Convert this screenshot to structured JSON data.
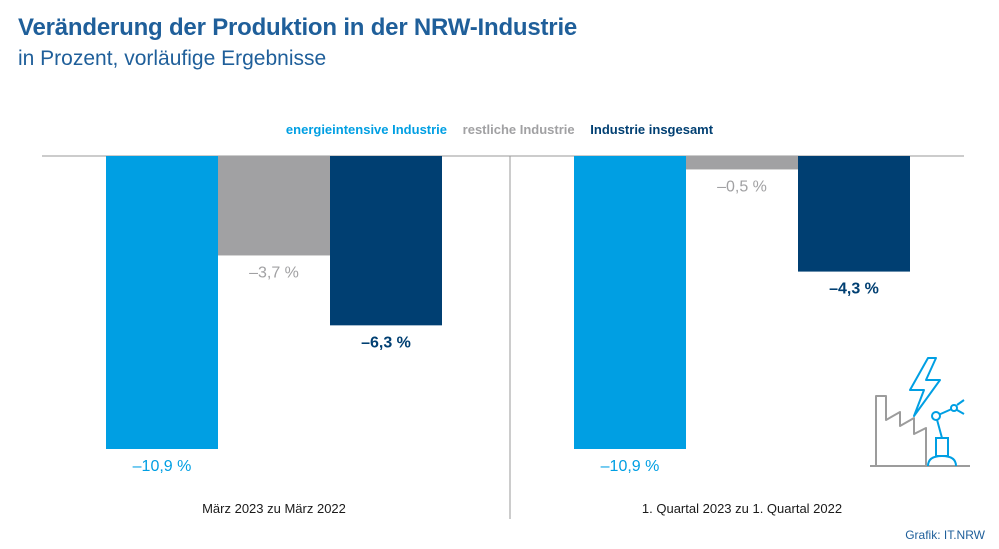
{
  "title": "Veränderung der Produktion in der NRW-Industrie",
  "subtitle": "in Prozent, vorläufige Ergebnisse",
  "source": "Grafik: IT.NRW",
  "colors": {
    "energieintensiv": "#009fe3",
    "restlich": "#a1a1a3",
    "gesamt": "#003f72",
    "title": "#1f5f9a"
  },
  "icon": "factory-robot-lightning-icon",
  "chart_data": {
    "type": "bar",
    "ylim": [
      -11.5,
      0
    ],
    "grid": false,
    "legend_position": "top-center",
    "categories": [
      "März 2023 zu März 2022",
      "1. Quartal 2023 zu 1. Quartal 2022"
    ],
    "series": [
      {
        "name": "energieintensive Industrie",
        "values": [
          -10.9,
          -10.9
        ],
        "labels": [
          "–10,9 %",
          "–10,9 %"
        ]
      },
      {
        "name": "restliche Industrie",
        "values": [
          -3.7,
          -0.5
        ],
        "labels": [
          "–3,7 %",
          "–0,5 %"
        ]
      },
      {
        "name": "Industrie insgesamt",
        "values": [
          -6.3,
          -4.3
        ],
        "labels": [
          "–6,3 %",
          "–4,3 %"
        ]
      }
    ]
  }
}
